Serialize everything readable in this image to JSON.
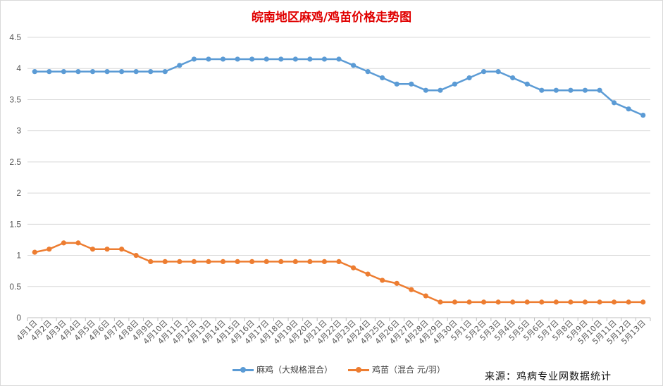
{
  "chart_data": {
    "type": "line",
    "title": "皖南地区麻鸡/鸡苗价格走势图",
    "categories": [
      "4月1日",
      "4月2日",
      "4月3日",
      "4月4日",
      "4月5日",
      "4月6日",
      "4月7日",
      "4月8日",
      "4月9日",
      "4月10日",
      "4月11日",
      "4月12日",
      "4月13日",
      "4月14日",
      "4月15日",
      "4月16日",
      "4月17日",
      "4月18日",
      "4月19日",
      "4月20日",
      "4月21日",
      "4月22日",
      "4月23日",
      "4月24日",
      "4月25日",
      "4月26日",
      "4月27日",
      "4月28日",
      "4月29日",
      "4月30日",
      "5月1日",
      "5月2日",
      "5月3日",
      "5月4日",
      "5月5日",
      "5月6日",
      "5月7日",
      "5月8日",
      "5月9日",
      "5月10日",
      "5月11日",
      "5月12日",
      "5月13日"
    ],
    "ylim": [
      0,
      4.5
    ],
    "yticks": [
      "0",
      "0.5",
      "1",
      "1.5",
      "2",
      "2.5",
      "3",
      "3.5",
      "4",
      "4.5"
    ],
    "grid": true,
    "legend_position": "bottom",
    "series": [
      {
        "name": "麻鸡（大规格混合）",
        "color": "#5b9bd5",
        "values": [
          3.95,
          3.95,
          3.95,
          3.95,
          3.95,
          3.95,
          3.95,
          3.95,
          3.95,
          3.95,
          4.05,
          4.15,
          4.15,
          4.15,
          4.15,
          4.15,
          4.15,
          4.15,
          4.15,
          4.15,
          4.15,
          4.15,
          4.05,
          3.95,
          3.85,
          3.75,
          3.75,
          3.65,
          3.65,
          3.75,
          3.85,
          3.95,
          3.95,
          3.85,
          3.75,
          3.65,
          3.65,
          3.65,
          3.65,
          3.65,
          3.45,
          3.35,
          3.25
        ]
      },
      {
        "name": "鸡苗（混合 元/羽）",
        "color": "#ed7d31",
        "values": [
          1.05,
          1.1,
          1.2,
          1.2,
          1.1,
          1.1,
          1.1,
          1.0,
          0.9,
          0.9,
          0.9,
          0.9,
          0.9,
          0.9,
          0.9,
          0.9,
          0.9,
          0.9,
          0.9,
          0.9,
          0.9,
          0.9,
          0.8,
          0.7,
          0.6,
          0.55,
          0.45,
          0.35,
          0.25,
          0.25,
          0.25,
          0.25,
          0.25,
          0.25,
          0.25,
          0.25,
          0.25,
          0.25,
          0.25,
          0.25,
          0.25,
          0.25,
          0.25
        ]
      }
    ]
  },
  "source_note": "来源：鸡病专业网数据统计"
}
